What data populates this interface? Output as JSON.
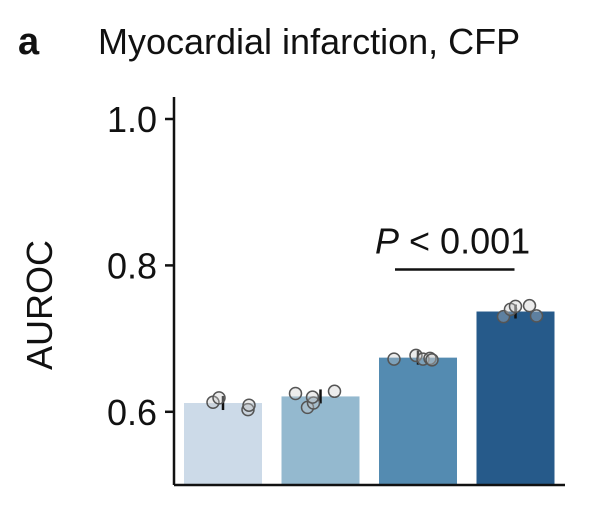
{
  "panel_label": "a",
  "chart_data": {
    "type": "bar",
    "title": "Myocardial infarction, CFP",
    "xlabel": "",
    "ylabel": "AUROC",
    "ylim": [
      0.5,
      1.02
    ],
    "yticks": [
      0.6,
      0.8,
      1.0
    ],
    "ytick_labels": [
      "0.6",
      "0.8",
      "1.0"
    ],
    "grid": false,
    "legend": "none",
    "categories": [
      "",
      "",
      "",
      ""
    ],
    "values": [
      0.612,
      0.621,
      0.674,
      0.737
    ],
    "bar_colors": [
      "#ccdae8",
      "#94b9cf",
      "#548bb1",
      "#265a8a"
    ],
    "points": [
      [
        0.613,
        0.619,
        0.603,
        0.609
      ],
      [
        0.625,
        0.606,
        0.612,
        0.628,
        0.62
      ],
      [
        0.672,
        0.677,
        0.672,
        0.673,
        0.671
      ],
      [
        0.73,
        0.74,
        0.744,
        0.745,
        0.731
      ]
    ],
    "annotation": {
      "text_prefix": "P",
      "text_suffix": " < 0.001",
      "y": 0.804,
      "bracket_from_bar": 2,
      "bracket_to_bar": 3
    }
  }
}
